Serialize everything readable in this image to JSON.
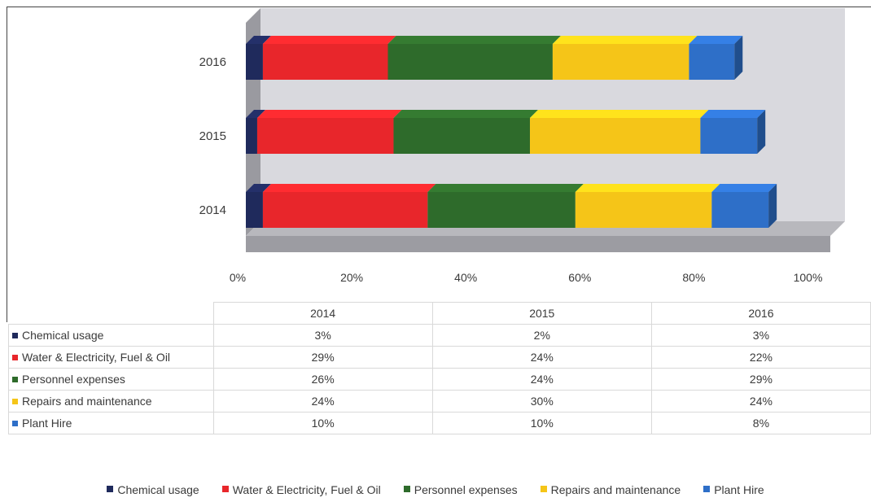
{
  "chart_data": {
    "type": "bar",
    "orientation": "horizontal",
    "stacked": "percent",
    "style": "3d",
    "categories": [
      "2014",
      "2015",
      "2016"
    ],
    "series": [
      {
        "name": "Chemical usage",
        "values": [
          3,
          2,
          3
        ],
        "labels": [
          "3%",
          "2%",
          "3%"
        ],
        "color": "#1f2a5c"
      },
      {
        "name": "Water & Electricity, Fuel & Oil",
        "values": [
          29,
          24,
          22
        ],
        "labels": [
          "29%",
          "24%",
          "22%"
        ],
        "color": "#e8262b"
      },
      {
        "name": "Personnel expenses",
        "values": [
          26,
          24,
          29
        ],
        "labels": [
          "26%",
          "24%",
          "29%"
        ],
        "color": "#2e6b2b"
      },
      {
        "name": "Repairs and maintenance",
        "values": [
          24,
          30,
          24
        ],
        "labels": [
          "24%",
          "30%",
          "24%"
        ],
        "color": "#f5c518"
      },
      {
        "name": "Plant Hire",
        "values": [
          10,
          10,
          8
        ],
        "labels": [
          "10%",
          "10%",
          "8%"
        ],
        "color": "#2e6fc8"
      }
    ],
    "xlim": [
      0,
      100
    ],
    "xticks": [
      "0%",
      "20%",
      "40%",
      "60%",
      "80%",
      "100%"
    ],
    "title": "",
    "xlabel": "",
    "ylabel": "",
    "legend": "bottom",
    "data_table": true,
    "background_color": "#d9d9de"
  }
}
